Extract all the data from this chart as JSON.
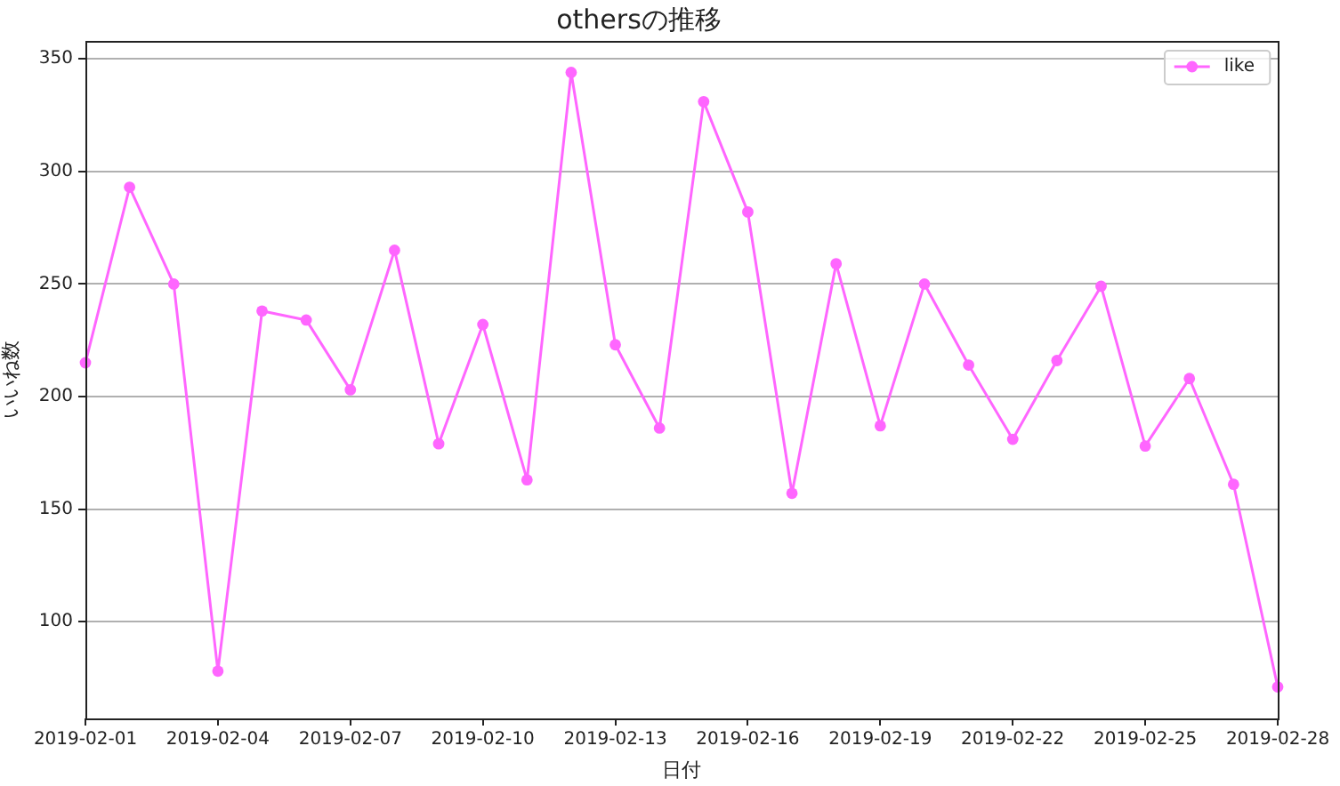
{
  "chart_data": {
    "type": "line",
    "title": "othersの推移",
    "xlabel": "日付",
    "ylabel": "いいね数",
    "x": [
      "2019-02-01",
      "2019-02-02",
      "2019-02-03",
      "2019-02-04",
      "2019-02-05",
      "2019-02-06",
      "2019-02-07",
      "2019-02-08",
      "2019-02-09",
      "2019-02-10",
      "2019-02-11",
      "2019-02-12",
      "2019-02-13",
      "2019-02-14",
      "2019-02-15",
      "2019-02-16",
      "2019-02-17",
      "2019-02-18",
      "2019-02-19",
      "2019-02-20",
      "2019-02-21",
      "2019-02-22",
      "2019-02-23",
      "2019-02-24",
      "2019-02-25",
      "2019-02-26",
      "2019-02-27",
      "2019-02-28"
    ],
    "series": [
      {
        "name": "like",
        "color": "#ff66ff",
        "values": [
          215,
          293,
          250,
          78,
          238,
          234,
          203,
          265,
          179,
          232,
          163,
          344,
          223,
          186,
          331,
          282,
          157,
          259,
          187,
          250,
          214,
          181,
          216,
          249,
          178,
          208,
          161,
          71
        ]
      }
    ],
    "xlim": [
      "2019-02-01",
      "2019-02-28"
    ],
    "xticks": [
      "2019-02-01",
      "2019-02-04",
      "2019-02-07",
      "2019-02-10",
      "2019-02-13",
      "2019-02-16",
      "2019-02-19",
      "2019-02-22",
      "2019-02-25",
      "2019-02-28"
    ],
    "ylim": [
      57,
      358
    ],
    "yticks": [
      100,
      150,
      200,
      250,
      300,
      350
    ],
    "grid": "y",
    "legend": "top right",
    "marker": "circle",
    "line_style": "solid"
  }
}
